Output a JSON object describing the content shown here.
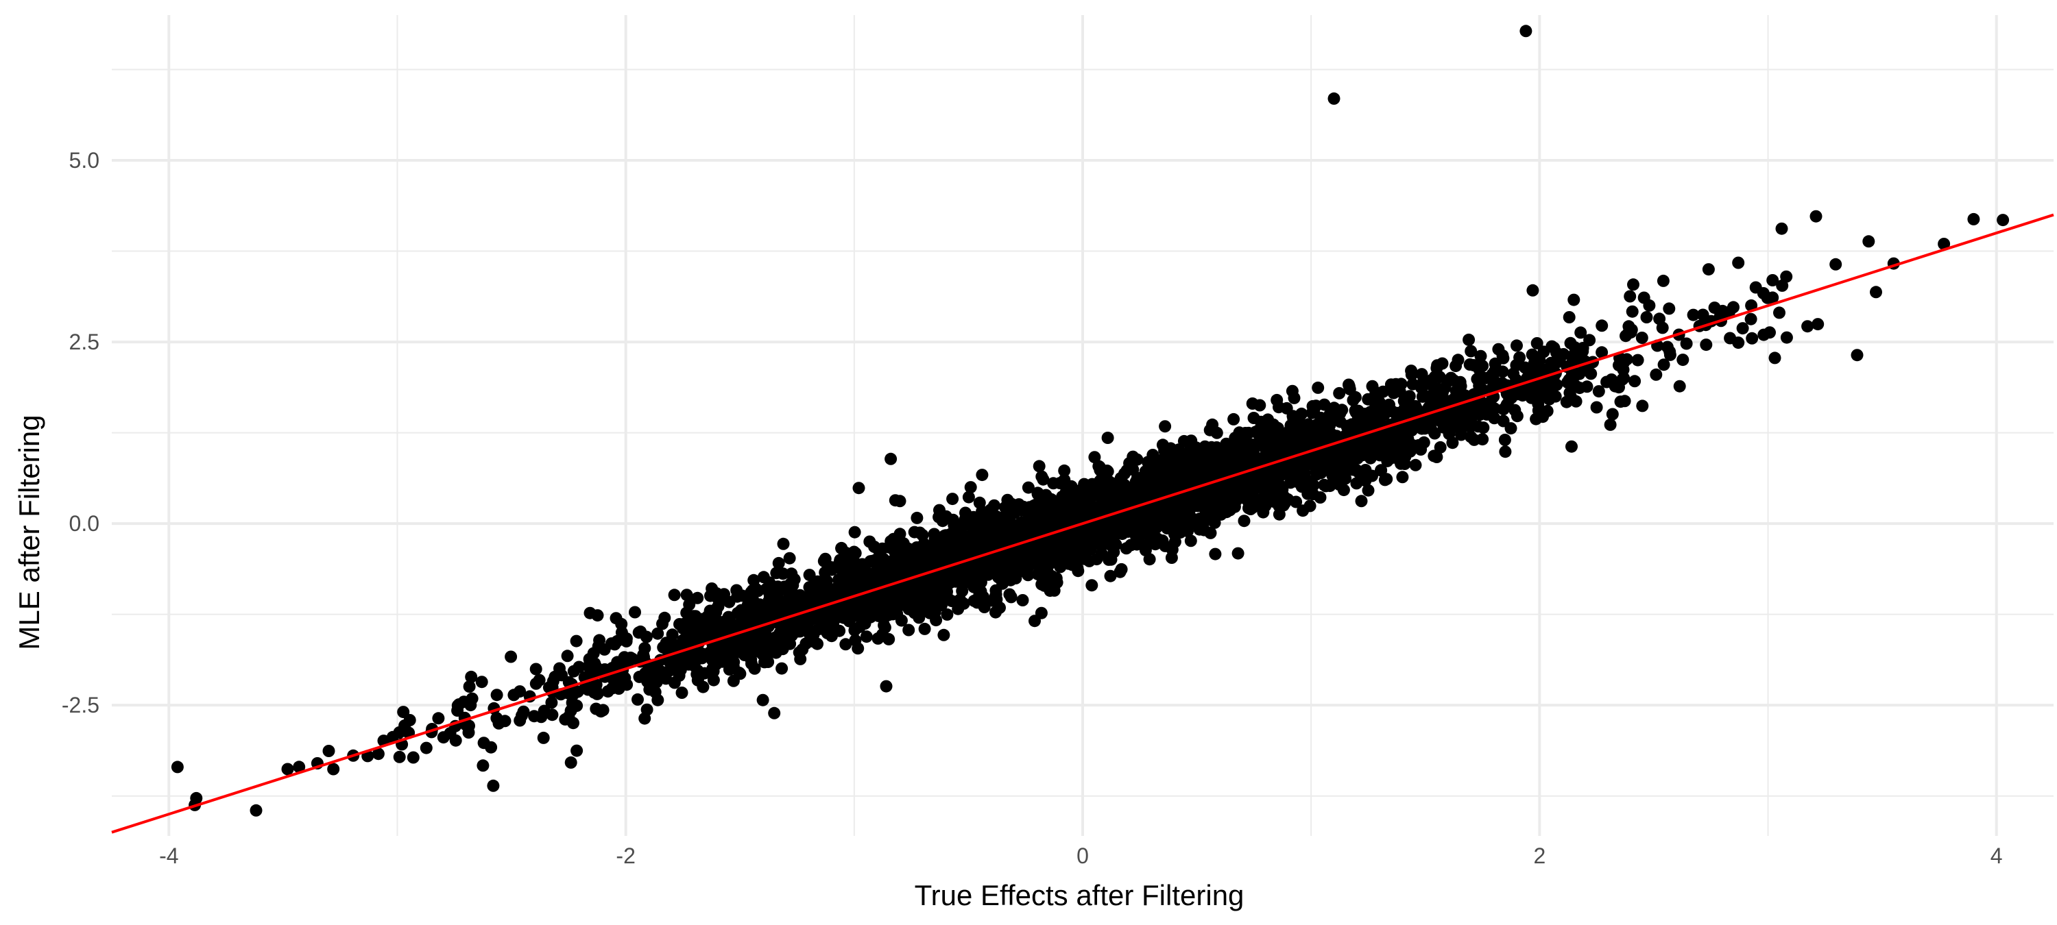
{
  "chart_data": {
    "type": "scatter",
    "title": "",
    "xlabel": "True Effects after Filtering",
    "ylabel": "MLE after Filtering",
    "xlim": [
      -4.25,
      4.25
    ],
    "ylim": [
      -4.3,
      7.0
    ],
    "x_ticks": [
      -4,
      -2,
      0,
      2,
      4
    ],
    "x_tick_labels": [
      "-4",
      "-2",
      "0",
      "2",
      "4"
    ],
    "y_ticks": [
      -2.5,
      0,
      2.5,
      5
    ],
    "y_tick_labels": [
      "-2.5",
      "0.0",
      "2.5",
      "5.0"
    ],
    "grid": true,
    "legend": "none",
    "colors": {
      "points": "#000000",
      "fit_line": "#ff0000",
      "grid": "#ebebeb"
    },
    "fit_line": {
      "slope": 1.0,
      "intercept": 0.0
    },
    "bulk_distribution": {
      "n_points": 3500,
      "true_effect_sd": 1.1,
      "noise_sd": 0.3,
      "slope": 1.0,
      "intercept": 0.0
    },
    "points": [
      [
        -3.88,
        -3.78
      ],
      [
        -3.48,
        -3.38
      ],
      [
        -3.43,
        -3.35
      ],
      [
        -3.35,
        -3.3
      ],
      [
        -3.3,
        -3.13
      ],
      [
        -3.28,
        -3.38
      ],
      [
        -3.13,
        -3.2
      ],
      [
        -3.06,
        -2.99
      ],
      [
        -3.02,
        -2.94
      ],
      [
        -2.98,
        -3.04
      ],
      [
        -2.95,
        -2.88
      ],
      [
        -2.93,
        -3.22
      ],
      [
        -2.85,
        -2.87
      ],
      [
        -2.82,
        -2.68
      ],
      [
        -2.73,
        -2.49
      ],
      [
        -2.7,
        -2.77
      ],
      [
        -2.63,
        -2.18
      ],
      [
        -2.59,
        -3.08
      ],
      [
        -2.58,
        -3.61
      ],
      [
        -2.49,
        -2.36
      ],
      [
        -2.42,
        -2.38
      ],
      [
        -2.36,
        -2.95
      ],
      [
        -2.31,
        -2.11
      ],
      [
        -2.25,
        -2.66
      ],
      [
        -2.24,
        -3.29
      ],
      [
        -2.15,
        -2.0
      ],
      [
        -2.13,
        -2.55
      ],
      [
        -1.98,
        -1.85
      ],
      [
        -1.96,
        -1.22
      ],
      [
        -1.86,
        -2.43
      ],
      [
        -1.84,
        -1.38
      ],
      [
        -1.72,
        -1.31
      ],
      [
        -1.63,
        -1.39
      ],
      [
        -1.44,
        -0.78
      ],
      [
        -1.41,
        -1.68
      ],
      [
        -1.4,
        -2.43
      ],
      [
        -1.35,
        -2.61
      ],
      [
        -1.31,
        -0.28
      ],
      [
        -1.12,
        -0.79
      ],
      [
        -1.05,
        -1.23
      ],
      [
        -0.99,
        -1.27
      ],
      [
        -0.98,
        0.49
      ],
      [
        -0.87,
        -1.4
      ],
      [
        -0.86,
        -2.24
      ],
      [
        -0.84,
        0.89
      ],
      [
        -0.82,
        0.32
      ],
      [
        -0.8,
        0.31
      ],
      [
        -0.68,
        -1.1
      ],
      [
        -0.63,
        0.09
      ],
      [
        -0.57,
        0.34
      ],
      [
        -0.49,
        0.5
      ],
      [
        -0.44,
        0.67
      ],
      [
        -0.43,
        -1.15
      ],
      [
        -0.38,
        -0.92
      ],
      [
        -0.33,
        -0.02
      ],
      [
        -0.29,
        -0.44
      ],
      [
        -0.21,
        -1.34
      ],
      [
        -0.19,
        0.79
      ],
      [
        -0.11,
        -0.01
      ],
      [
        -0.08,
        0.6
      ],
      [
        0.04,
        -0.85
      ],
      [
        0.07,
        0.79
      ],
      [
        0.11,
        1.18
      ],
      [
        0.17,
        -0.63
      ],
      [
        0.22,
        0.92
      ],
      [
        0.26,
        0.45
      ],
      [
        0.34,
        0.87
      ],
      [
        0.39,
        -0.47
      ],
      [
        0.45,
        0.15
      ],
      [
        0.53,
        0.82
      ],
      [
        0.55,
        0.18
      ],
      [
        0.63,
        0.16
      ],
      [
        0.68,
        -0.41
      ],
      [
        0.72,
        0.51
      ],
      [
        0.78,
        1.4
      ],
      [
        0.8,
        1.03
      ],
      [
        0.85,
        1.7
      ],
      [
        0.86,
        0.24
      ],
      [
        0.92,
        1.48
      ],
      [
        0.97,
        1.14
      ],
      [
        1.03,
        1.87
      ],
      [
        1.04,
        0.36
      ],
      [
        1.1,
        5.85
      ],
      [
        1.15,
        0.62
      ],
      [
        1.17,
        1.85
      ],
      [
        1.22,
        0.31
      ],
      [
        1.26,
        0.9
      ],
      [
        1.32,
        1.57
      ],
      [
        1.4,
        0.64
      ],
      [
        1.44,
        2.05
      ],
      [
        1.48,
        1.02
      ],
      [
        1.55,
        2.14
      ],
      [
        1.6,
        1.36
      ],
      [
        1.69,
        2.53
      ],
      [
        1.75,
        1.16
      ],
      [
        1.82,
        2.4
      ],
      [
        1.85,
        0.99
      ],
      [
        1.9,
        2.45
      ],
      [
        1.94,
        6.78
      ],
      [
        1.97,
        3.21
      ],
      [
        2.0,
        2.25
      ],
      [
        2.07,
        1.75
      ],
      [
        2.13,
        2.84
      ],
      [
        2.14,
        1.06
      ],
      [
        2.15,
        3.08
      ],
      [
        2.25,
        1.6
      ],
      [
        2.31,
        1.36
      ],
      [
        2.35,
        2.28
      ],
      [
        2.41,
        3.29
      ],
      [
        2.45,
        1.62
      ],
      [
        2.51,
        2.05
      ],
      [
        2.56,
        2.43
      ],
      [
        2.61,
        2.6
      ],
      [
        2.7,
        2.72
      ],
      [
        2.74,
        3.5
      ],
      [
        2.79,
        2.85
      ],
      [
        2.83,
        2.91
      ],
      [
        2.87,
        3.59
      ],
      [
        2.87,
        2.49
      ],
      [
        2.93,
        2.55
      ],
      [
        2.98,
        3.17
      ],
      [
        3.02,
        3.35
      ],
      [
        3.02,
        3.11
      ],
      [
        3.03,
        2.28
      ],
      [
        3.06,
        4.06
      ],
      [
        3.08,
        3.4
      ],
      [
        3.21,
        4.23
      ],
      [
        3.39,
        2.32
      ],
      [
        3.55,
        3.58
      ],
      [
        3.77,
        3.85
      ],
      [
        3.9,
        4.19
      ]
    ]
  }
}
